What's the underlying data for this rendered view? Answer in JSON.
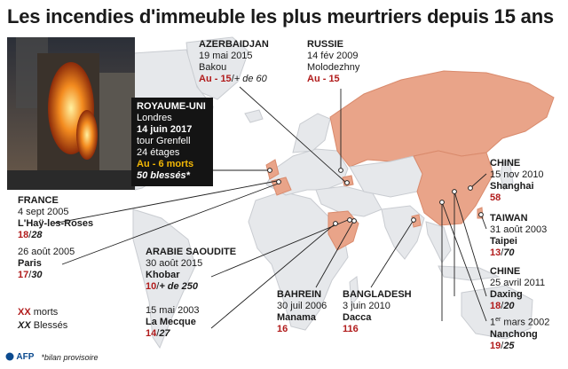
{
  "title": "Les incendies d'immeuble les plus meurtriers depuis 15 ans",
  "colors": {
    "land": "#e6e8eb",
    "land_edge": "#c9ccd1",
    "highlight": "#e9a489",
    "highlight_edge": "#d98a6c",
    "deaths": "#b11b1b",
    "leader": "#222222",
    "box_bg": "#141414",
    "box_accent": "#f2b705"
  },
  "events": [
    {
      "id": "uk",
      "country": "ROYAUME-UNI",
      "city": "Londres",
      "date": "14 juin 2017",
      "building": "tour Grenfell",
      "floors": "24 étages",
      "toll": "Au - 6 morts",
      "injured": "50 blessés*"
    },
    {
      "id": "azerbaijan",
      "country": "AZERBAIDJAN",
      "date": "19 mai 2015",
      "city": "Bakou",
      "deaths": "Au - 15",
      "injured": "+ de 60"
    },
    {
      "id": "russia",
      "country": "RUSSIE",
      "date": "14 fév 2009",
      "city": "Molodezhny",
      "deaths": "Au - 15"
    },
    {
      "id": "france1",
      "country": "FRANCE",
      "date": "4 sept 2005",
      "city": "L'Haÿ-les-Roses",
      "deaths": "18",
      "injured": "28"
    },
    {
      "id": "france2",
      "date": "26 août 2005",
      "city": "Paris",
      "deaths": "17",
      "injured": "30"
    },
    {
      "id": "saudi1",
      "country": "ARABIE SAOUDITE",
      "date": "30 août 2015",
      "city": "Khobar",
      "deaths": "10",
      "injured": "+ de 250"
    },
    {
      "id": "saudi2",
      "date": "15 mai 2003",
      "city": "La Mecque",
      "deaths": "14",
      "injured": "27"
    },
    {
      "id": "bahrain",
      "country": "BAHREIN",
      "date": "30 juil 2006",
      "city": "Manama",
      "deaths": "16"
    },
    {
      "id": "bangladesh",
      "country": "BANGLADESH",
      "date": "3 juin 2010",
      "city": "Dacca",
      "deaths": "116"
    },
    {
      "id": "china1",
      "country": "CHINE",
      "date": "15 nov 2010",
      "city": "Shanghai",
      "deaths": "58"
    },
    {
      "id": "taiwan",
      "country": "TAIWAN",
      "date": "31 août 2003",
      "city": "Taipei",
      "deaths": "13",
      "injured": "70"
    },
    {
      "id": "china2",
      "country": "CHINE",
      "date": "25 avril 2011",
      "city": "Daxing",
      "deaths": "18",
      "injured": "20"
    },
    {
      "id": "china3",
      "date_day": "1",
      "date_sup": "er",
      "date_rest": " mars 2002",
      "city": "Nanchong",
      "deaths": "19",
      "injured": "25"
    }
  ],
  "legend": {
    "deaths_marker": "XX",
    "deaths_label": "morts",
    "injured_marker": "XX",
    "injured_label": "Blessés"
  },
  "footer": {
    "logo": "AFP",
    "note": "*bilan provisoire"
  },
  "icons": {
    "logo": "afp-logo",
    "photo": "burning-tower-photo"
  }
}
